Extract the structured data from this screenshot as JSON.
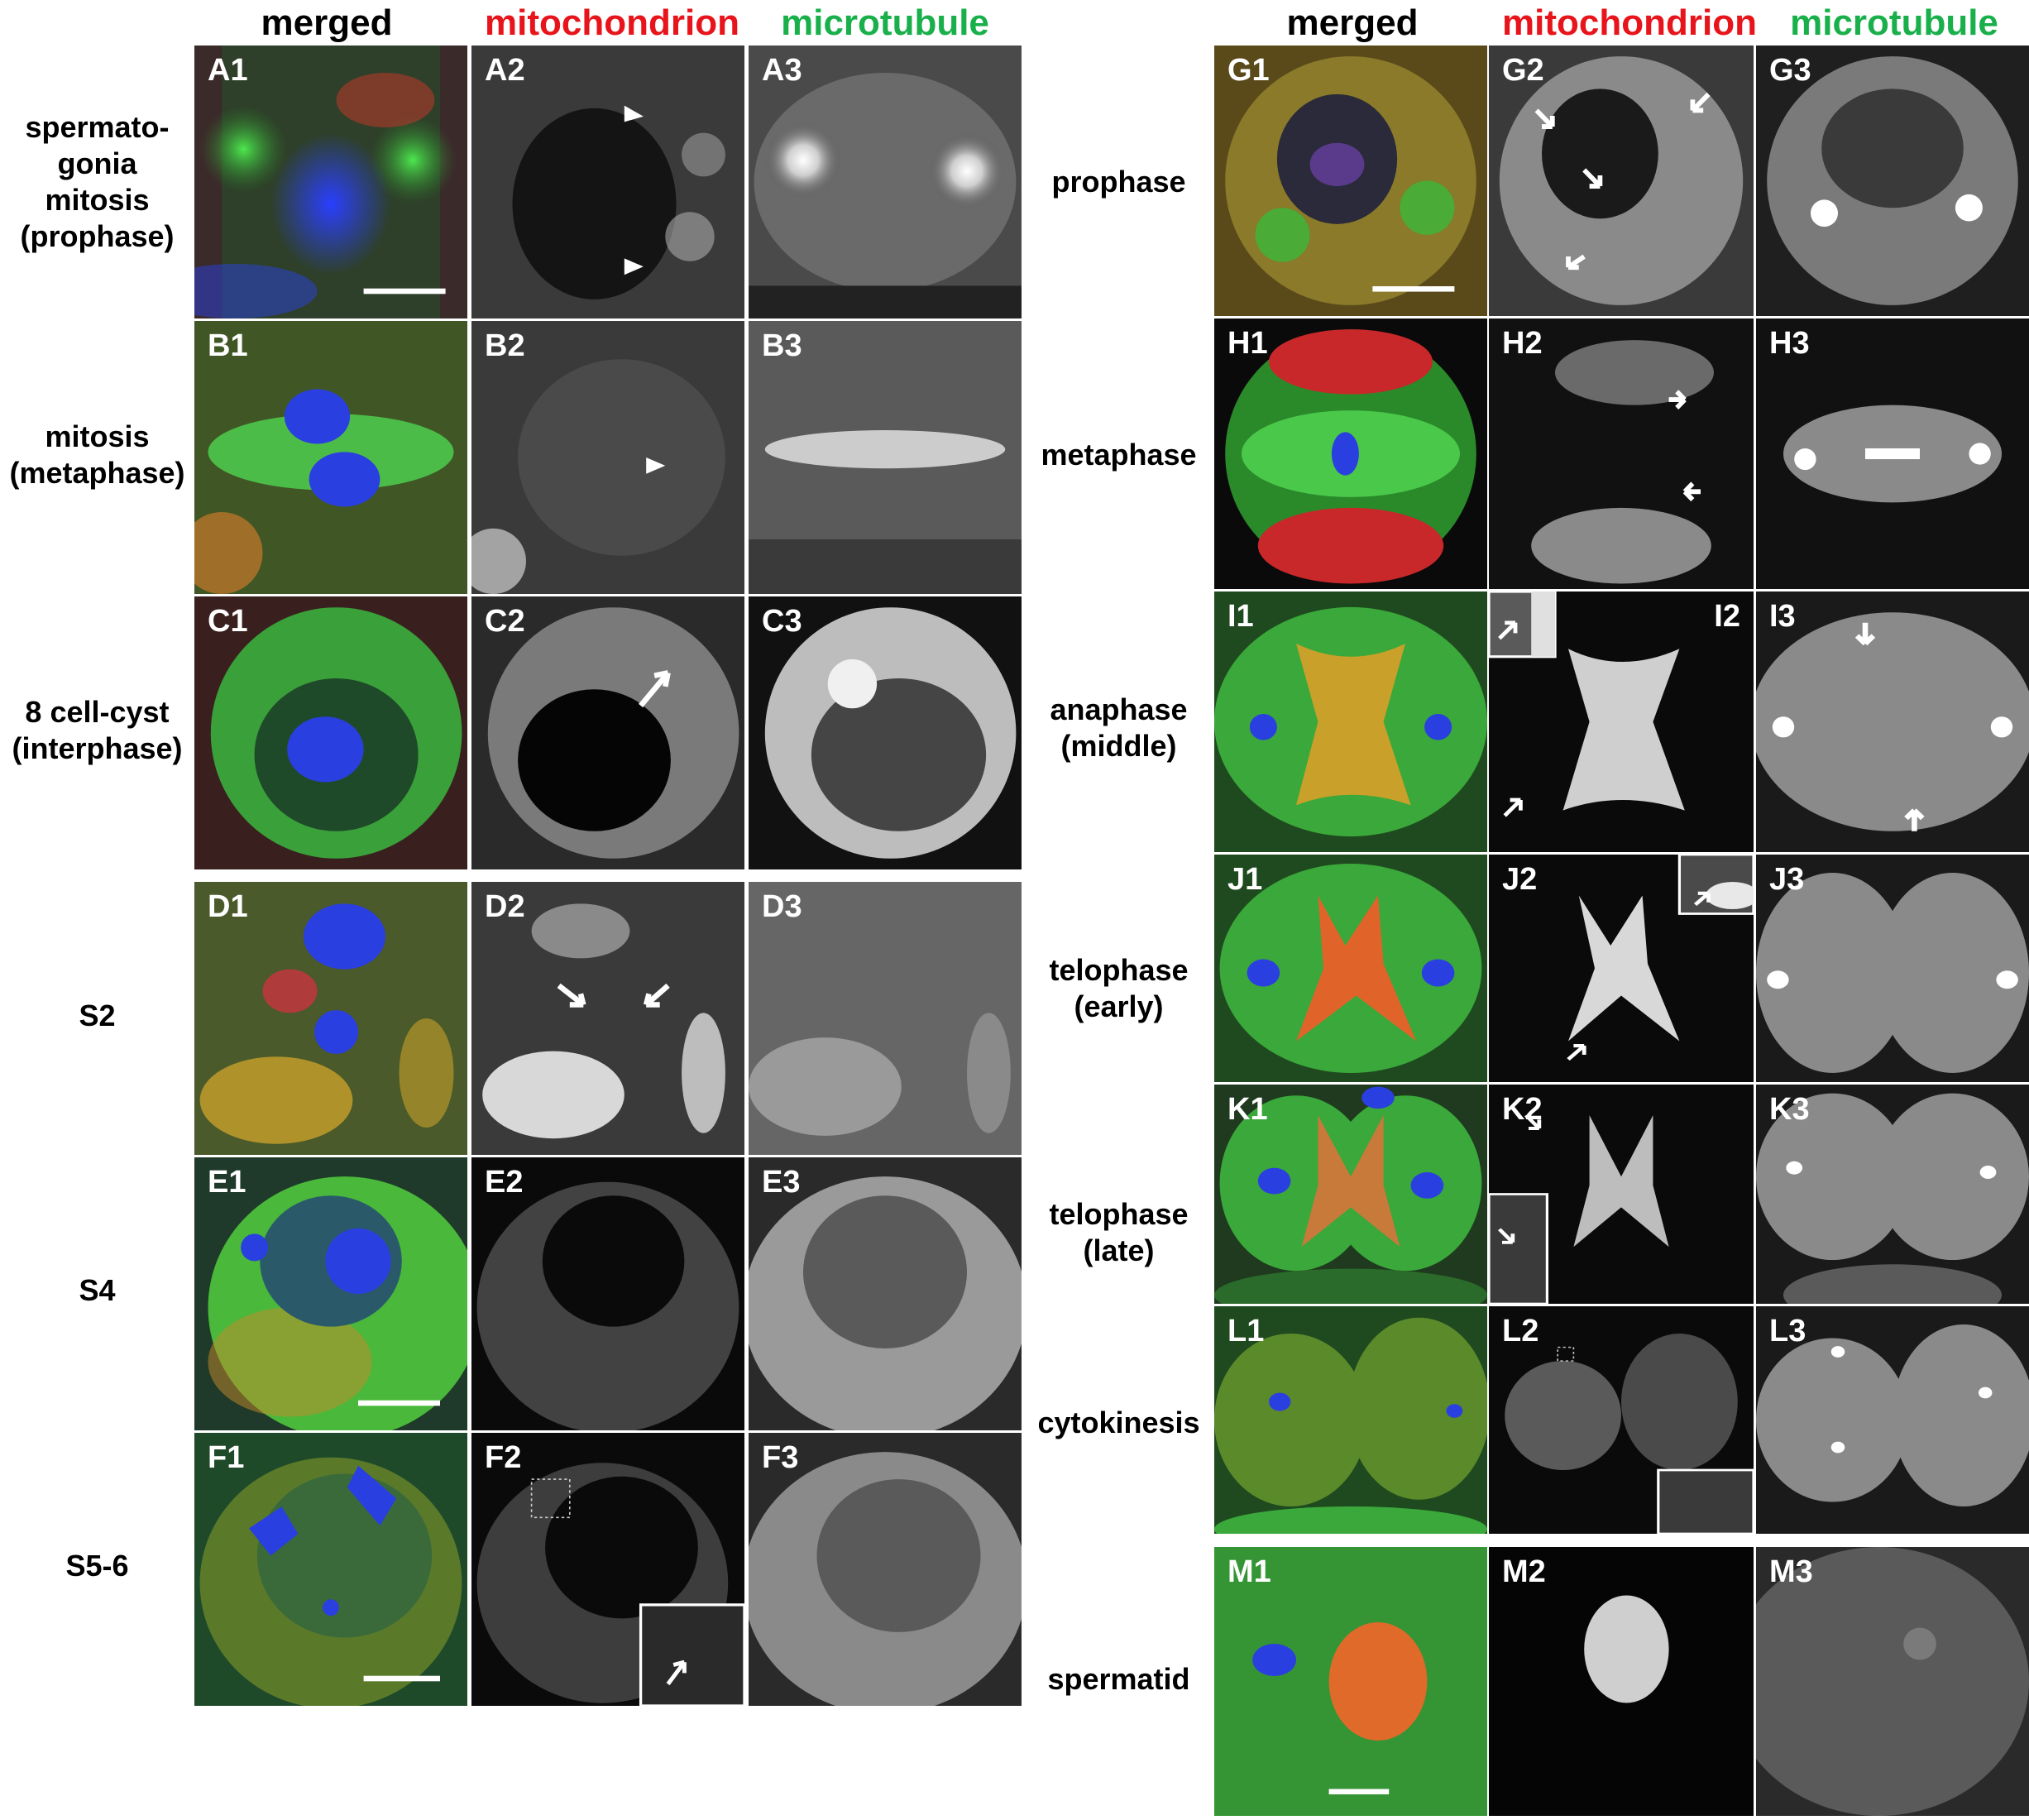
{
  "left": {
    "headers": [
      "merged",
      "mitochondrion",
      "microtubule"
    ],
    "rows": [
      {
        "label": "spermato-\ngonia\nmitosis\n(prophase)",
        "panels": [
          "A1",
          "A2",
          "A3"
        ]
      },
      {
        "label": "mitosis\n(metaphase)",
        "panels": [
          "B1",
          "B2",
          "B3"
        ]
      },
      {
        "label": "8 cell-cyst\n(interphase)",
        "panels": [
          "C1",
          "C2",
          "C3"
        ]
      },
      {
        "label": "S2",
        "panels": [
          "D1",
          "D2",
          "D3"
        ]
      },
      {
        "label": "S4",
        "panels": [
          "E1",
          "E2",
          "E3"
        ]
      },
      {
        "label": "S5-6",
        "panels": [
          "F1",
          "F2",
          "F3"
        ]
      }
    ]
  },
  "right": {
    "headers": [
      "merged",
      "mitochondrion",
      "microtubule"
    ],
    "rows": [
      {
        "label": "prophase",
        "panels": [
          "G1",
          "G2",
          "G3"
        ]
      },
      {
        "label": "metaphase",
        "panels": [
          "H1",
          "H2",
          "H3"
        ]
      },
      {
        "label": "anaphase\n(middle)",
        "panels": [
          "I1",
          "I2",
          "I3"
        ]
      },
      {
        "label": "telophase\n(early)",
        "panels": [
          "J1",
          "J2",
          "J3"
        ]
      },
      {
        "label": "telophase\n(late)",
        "panels": [
          "K1",
          "K2",
          "K3"
        ]
      },
      {
        "label": "cytokinesis",
        "panels": [
          "L1",
          "L2",
          "L3"
        ]
      },
      {
        "label": "spermatid",
        "panels": [
          "M1",
          "M2",
          "M3"
        ]
      }
    ]
  },
  "colors": {
    "header_merged": "#000000",
    "header_mitochondrion": "#e8141b",
    "header_microtubule": "#19b04b",
    "merged_green": "#2f9e2a",
    "merged_red": "#d8452a",
    "merged_blue": "#2a3fe0",
    "panel_label": "#ffffff"
  }
}
